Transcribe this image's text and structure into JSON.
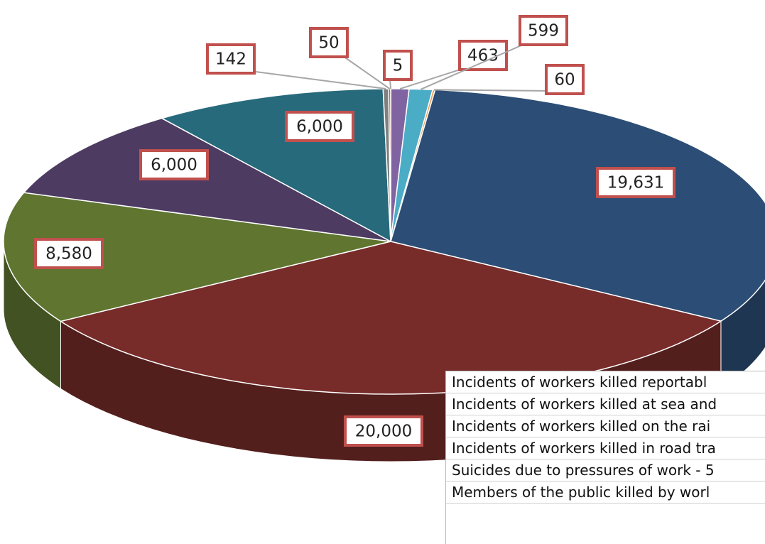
{
  "chart_data": {
    "type": "pie",
    "categories": [
      "Incidents of workers killed reportabl",
      "Incidents of workers killed at sea and",
      "Incidents of workers killed on the rai",
      "Incidents of workers killed in road tra",
      "Suicides due to pressures of work - 5",
      "Members of the public killed by worl",
      null,
      null,
      null,
      null,
      null
    ],
    "values": [
      5,
      463,
      599,
      60,
      19631,
      20000,
      8580,
      6000,
      6000,
      142,
      50
    ],
    "value_labels": [
      "5",
      "463",
      "599",
      "60",
      "19,631",
      "20,000",
      "8,580",
      "6,000",
      "6,000",
      "142",
      "50"
    ],
    "colors": [
      "#4f81bd",
      "#8064a2",
      "#4bacc6",
      "#f79646",
      "#2c4d75",
      "#772c2a",
      "#5f7530",
      "#4d3b62",
      "#276a7c",
      "#7f7f7f",
      "#c0504d"
    ],
    "legend_entries": 6
  }
}
